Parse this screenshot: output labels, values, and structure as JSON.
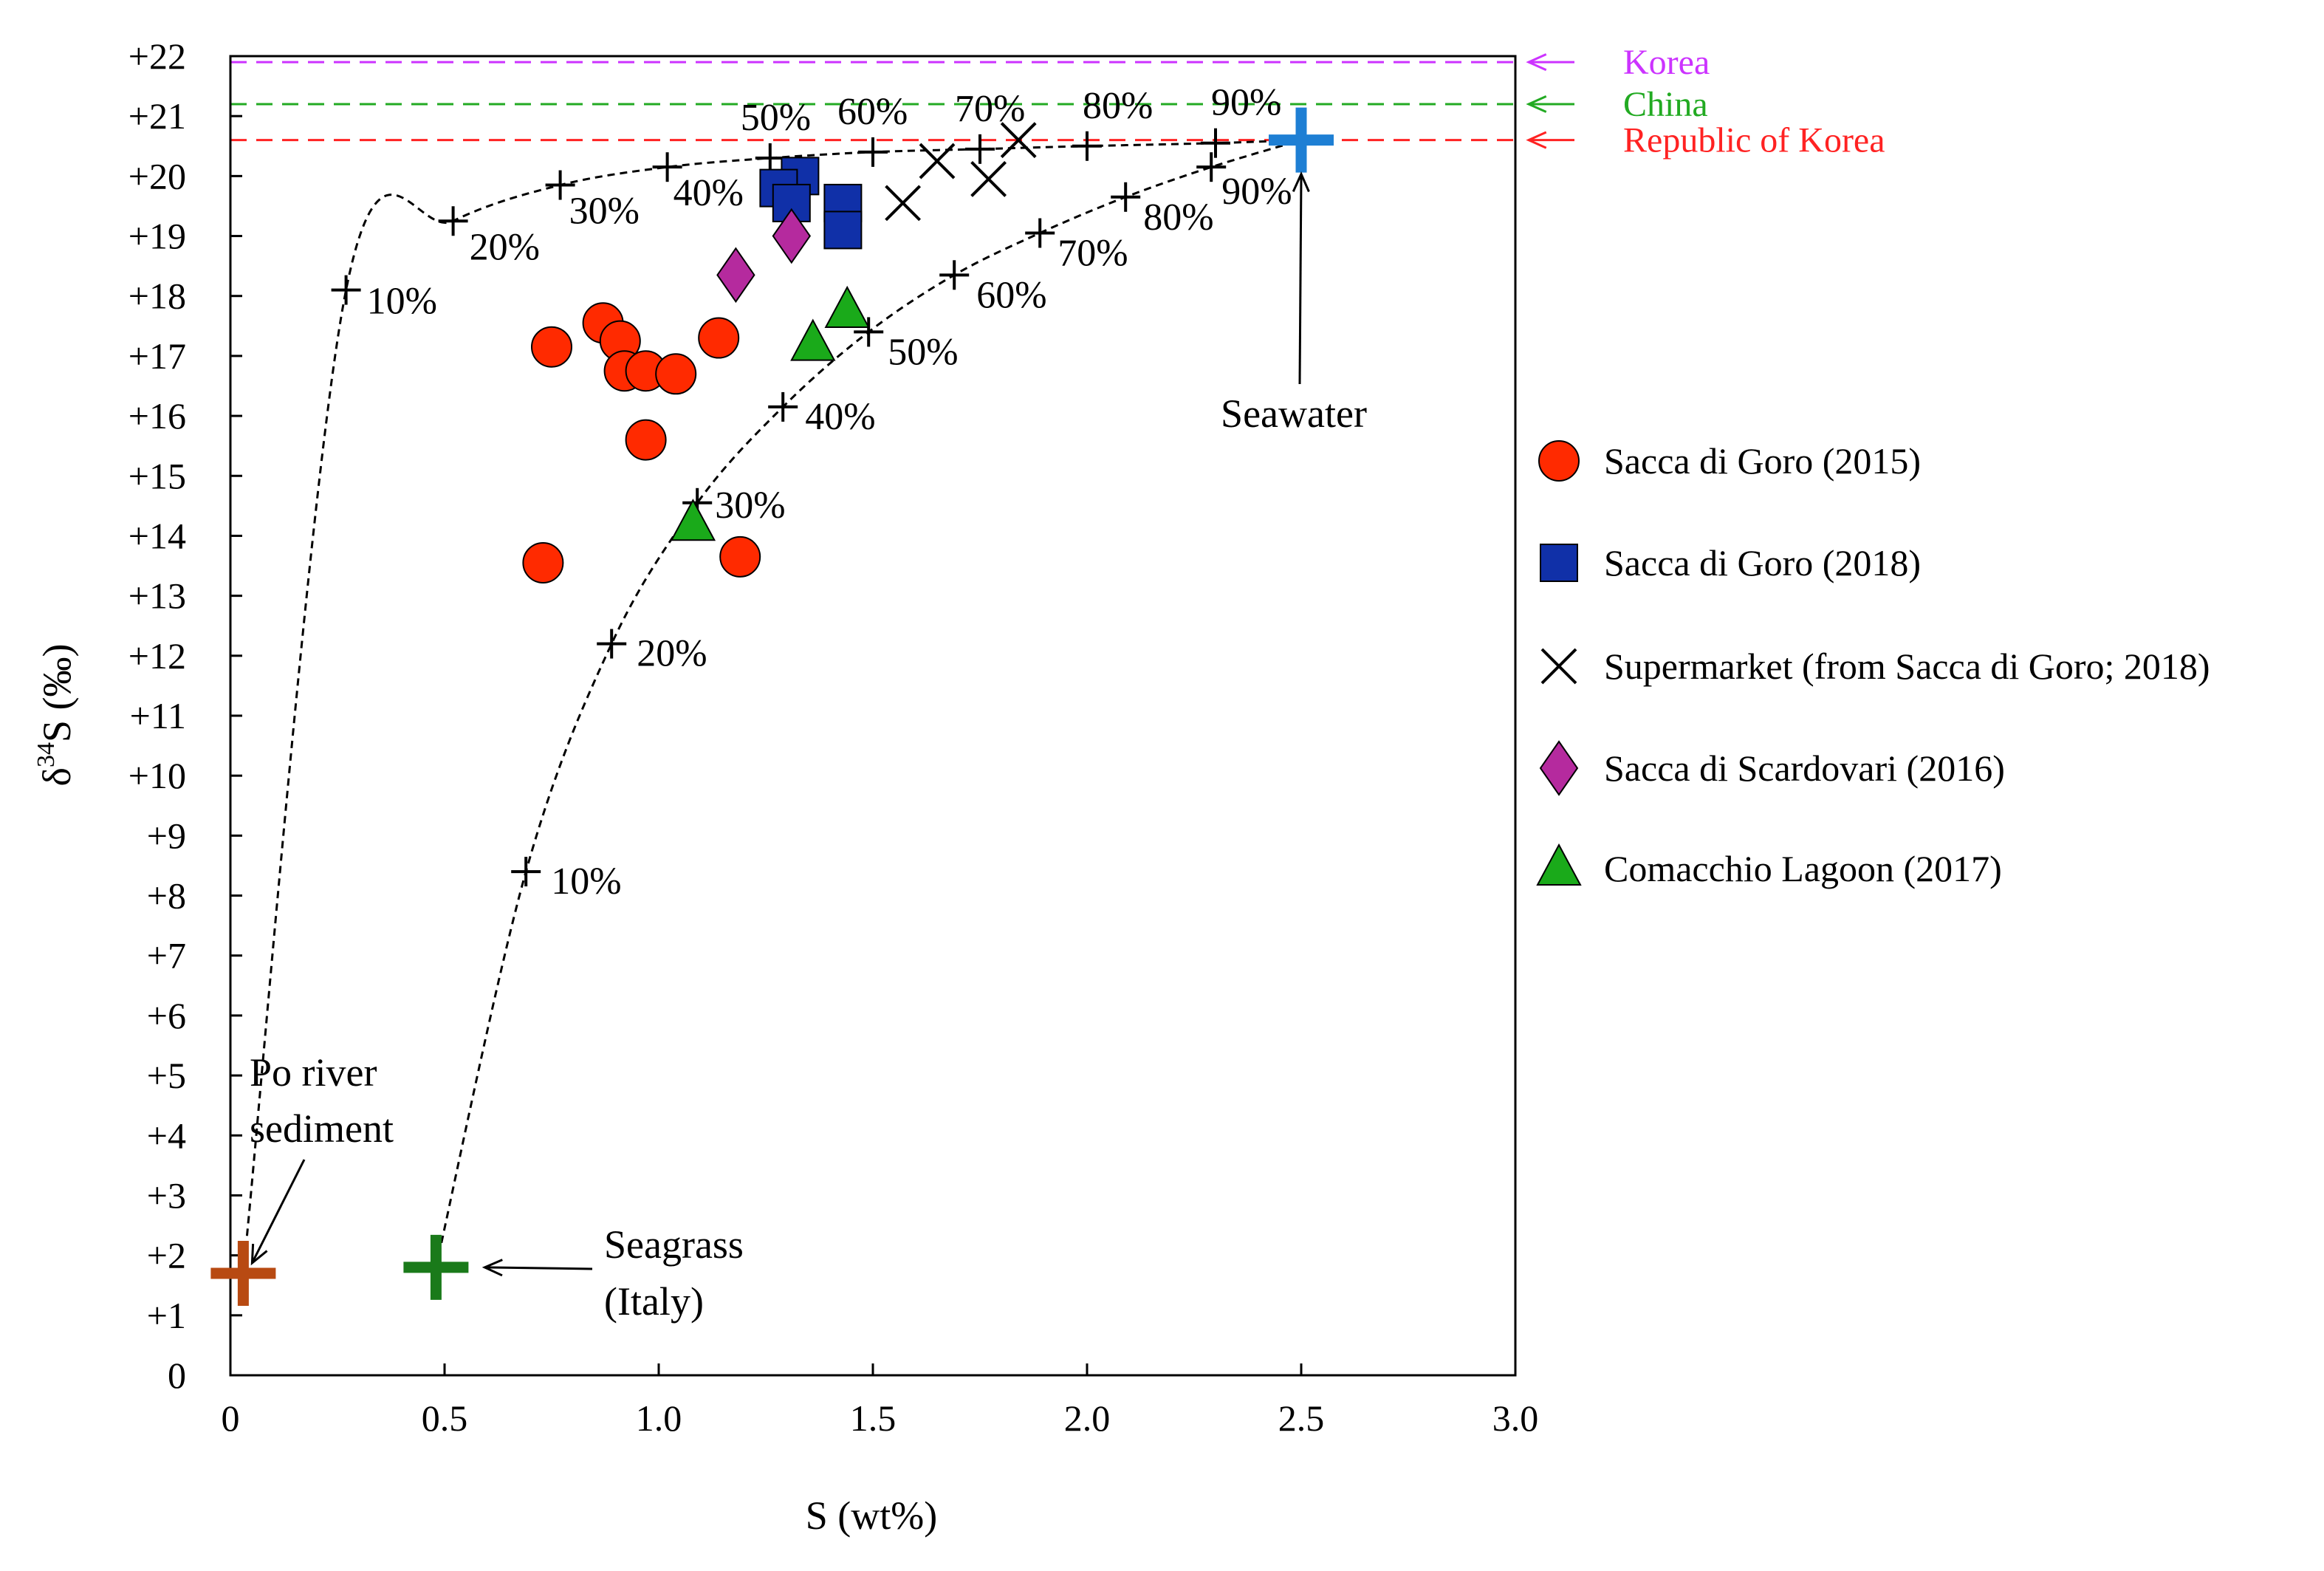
{
  "chart_data": {
    "type": "scatter",
    "xlabel": "S (wt%)",
    "ylabel_main": "δ",
    "ylabel_sup": "34",
    "ylabel_rest": "S (‰)",
    "xlim": [
      0,
      3.0
    ],
    "ylim": [
      0,
      22
    ],
    "x_ticks": [
      {
        "value": 0,
        "label": "0"
      },
      {
        "value": 0.5,
        "label": "0.5"
      },
      {
        "value": 1.0,
        "label": "1.0"
      },
      {
        "value": 1.5,
        "label": "1.5"
      },
      {
        "value": 2.0,
        "label": "2.0"
      },
      {
        "value": 2.5,
        "label": "2.5"
      },
      {
        "value": 3.0,
        "label": "3.0"
      }
    ],
    "y_ticks": [
      {
        "value": 0,
        "label": "0"
      },
      {
        "value": 1,
        "label": "+1"
      },
      {
        "value": 2,
        "label": "+2"
      },
      {
        "value": 3,
        "label": "+3"
      },
      {
        "value": 4,
        "label": "+4"
      },
      {
        "value": 5,
        "label": "+5"
      },
      {
        "value": 6,
        "label": "+6"
      },
      {
        "value": 7,
        "label": "+7"
      },
      {
        "value": 8,
        "label": "+8"
      },
      {
        "value": 9,
        "label": "+9"
      },
      {
        "value": 10,
        "label": "+10"
      },
      {
        "value": 11,
        "label": "+11"
      },
      {
        "value": 12,
        "label": "+12"
      },
      {
        "value": 13,
        "label": "+13"
      },
      {
        "value": 14,
        "label": "+14"
      },
      {
        "value": 15,
        "label": "+15"
      },
      {
        "value": 16,
        "label": "+16"
      },
      {
        "value": 17,
        "label": "+17"
      },
      {
        "value": 18,
        "label": "+18"
      },
      {
        "value": 19,
        "label": "+19"
      },
      {
        "value": 20,
        "label": "+20"
      },
      {
        "value": 21,
        "label": "+21"
      },
      {
        "value": 22,
        "label": "+22"
      }
    ],
    "reference_lines": [
      {
        "name": "Korea",
        "y": 21.9,
        "color": "#cc33ff"
      },
      {
        "name": "China",
        "y": 21.2,
        "color": "#22aa22"
      },
      {
        "name": "Republic of Korea",
        "y": 20.6,
        "color": "#ff2222"
      }
    ],
    "series": [
      {
        "name": "Sacca di Goro (2015)",
        "marker": "circle",
        "color": "#ff2a00",
        "points": [
          {
            "x": 0.75,
            "y": 17.15
          },
          {
            "x": 0.87,
            "y": 17.55
          },
          {
            "x": 0.91,
            "y": 17.25
          },
          {
            "x": 0.92,
            "y": 16.75
          },
          {
            "x": 0.97,
            "y": 16.75
          },
          {
            "x": 1.04,
            "y": 16.7
          },
          {
            "x": 1.14,
            "y": 17.3
          },
          {
            "x": 0.97,
            "y": 15.6
          },
          {
            "x": 0.73,
            "y": 13.55
          },
          {
            "x": 1.19,
            "y": 13.65
          }
        ]
      },
      {
        "name": "Sacca di Goro (2018)",
        "marker": "square",
        "color": "#1030a8",
        "points": [
          {
            "x": 1.33,
            "y": 20.0
          },
          {
            "x": 1.28,
            "y": 19.8
          },
          {
            "x": 1.31,
            "y": 19.55
          },
          {
            "x": 1.43,
            "y": 19.55
          },
          {
            "x": 1.43,
            "y": 19.1
          }
        ]
      },
      {
        "name": "Supermarket (from Sacca di Goro; 2018)",
        "marker": "x",
        "color": "#000000",
        "points": [
          {
            "x": 1.57,
            "y": 19.55
          },
          {
            "x": 1.65,
            "y": 20.25
          },
          {
            "x": 1.77,
            "y": 19.95
          },
          {
            "x": 1.84,
            "y": 20.6
          }
        ]
      },
      {
        "name": "Sacca di Scardovari  (2016)",
        "marker": "diamond",
        "color": "#b52a9e",
        "points": [
          {
            "x": 1.18,
            "y": 18.35
          },
          {
            "x": 1.31,
            "y": 19.0
          }
        ]
      },
      {
        "name": "Comacchio Lagoon (2017)",
        "marker": "triangle",
        "color": "#1aaa1a",
        "points": [
          {
            "x": 1.44,
            "y": 17.75
          },
          {
            "x": 1.36,
            "y": 17.2
          },
          {
            "x": 1.08,
            "y": 14.2
          }
        ]
      }
    ],
    "endmembers": [
      {
        "name": "Po river sediment",
        "x": 0.03,
        "y": 1.7,
        "color": "#b84a12"
      },
      {
        "name": "Seagrass (Italy)",
        "x": 0.48,
        "y": 1.8,
        "color": "#1a7a1a"
      },
      {
        "name": "Seawater",
        "x": 2.5,
        "y": 20.6,
        "color": "#1e7fd4"
      }
    ],
    "mixing_curves": [
      {
        "name": "Po river sediment – Seawater",
        "start": {
          "x": 0.03,
          "y": 1.7
        },
        "end": {
          "x": 2.5,
          "y": 20.6
        },
        "marks": [
          {
            "x": 0.27,
            "y": 18.1,
            "label": "10%"
          },
          {
            "x": 0.52,
            "y": 19.25,
            "label": "20%"
          },
          {
            "x": 0.77,
            "y": 19.85,
            "label": "30%"
          },
          {
            "x": 1.02,
            "y": 20.15,
            "label": "40%"
          },
          {
            "x": 1.26,
            "y": 20.3,
            "label": "50%"
          },
          {
            "x": 1.5,
            "y": 20.4,
            "label": "60%"
          },
          {
            "x": 1.75,
            "y": 20.45,
            "label": "70%"
          },
          {
            "x": 2.0,
            "y": 20.5,
            "label": "80%"
          },
          {
            "x": 2.3,
            "y": 20.55,
            "label": "90%"
          }
        ]
      },
      {
        "name": "Seagrass – Seawater",
        "start": {
          "x": 0.48,
          "y": 1.8
        },
        "end": {
          "x": 2.5,
          "y": 20.6
        },
        "marks": [
          {
            "x": 0.69,
            "y": 8.4,
            "label": "10%"
          },
          {
            "x": 0.89,
            "y": 12.2,
            "label": "20%"
          },
          {
            "x": 1.09,
            "y": 14.55,
            "label": "30%"
          },
          {
            "x": 1.29,
            "y": 16.15,
            "label": "40%"
          },
          {
            "x": 1.49,
            "y": 17.4,
            "label": "50%"
          },
          {
            "x": 1.69,
            "y": 18.35,
            "label": "60%"
          },
          {
            "x": 1.89,
            "y": 19.05,
            "label": "70%"
          },
          {
            "x": 2.09,
            "y": 19.65,
            "label": "80%"
          },
          {
            "x": 2.29,
            "y": 20.15,
            "label": "90%"
          }
        ]
      }
    ],
    "annotations": {
      "po_line1": "Po river",
      "po_line2": "sediment",
      "seagrass_line1": "Seagrass",
      "seagrass_line2": "(Italy)",
      "seawater": "Seawater"
    },
    "legend_position": "right"
  }
}
